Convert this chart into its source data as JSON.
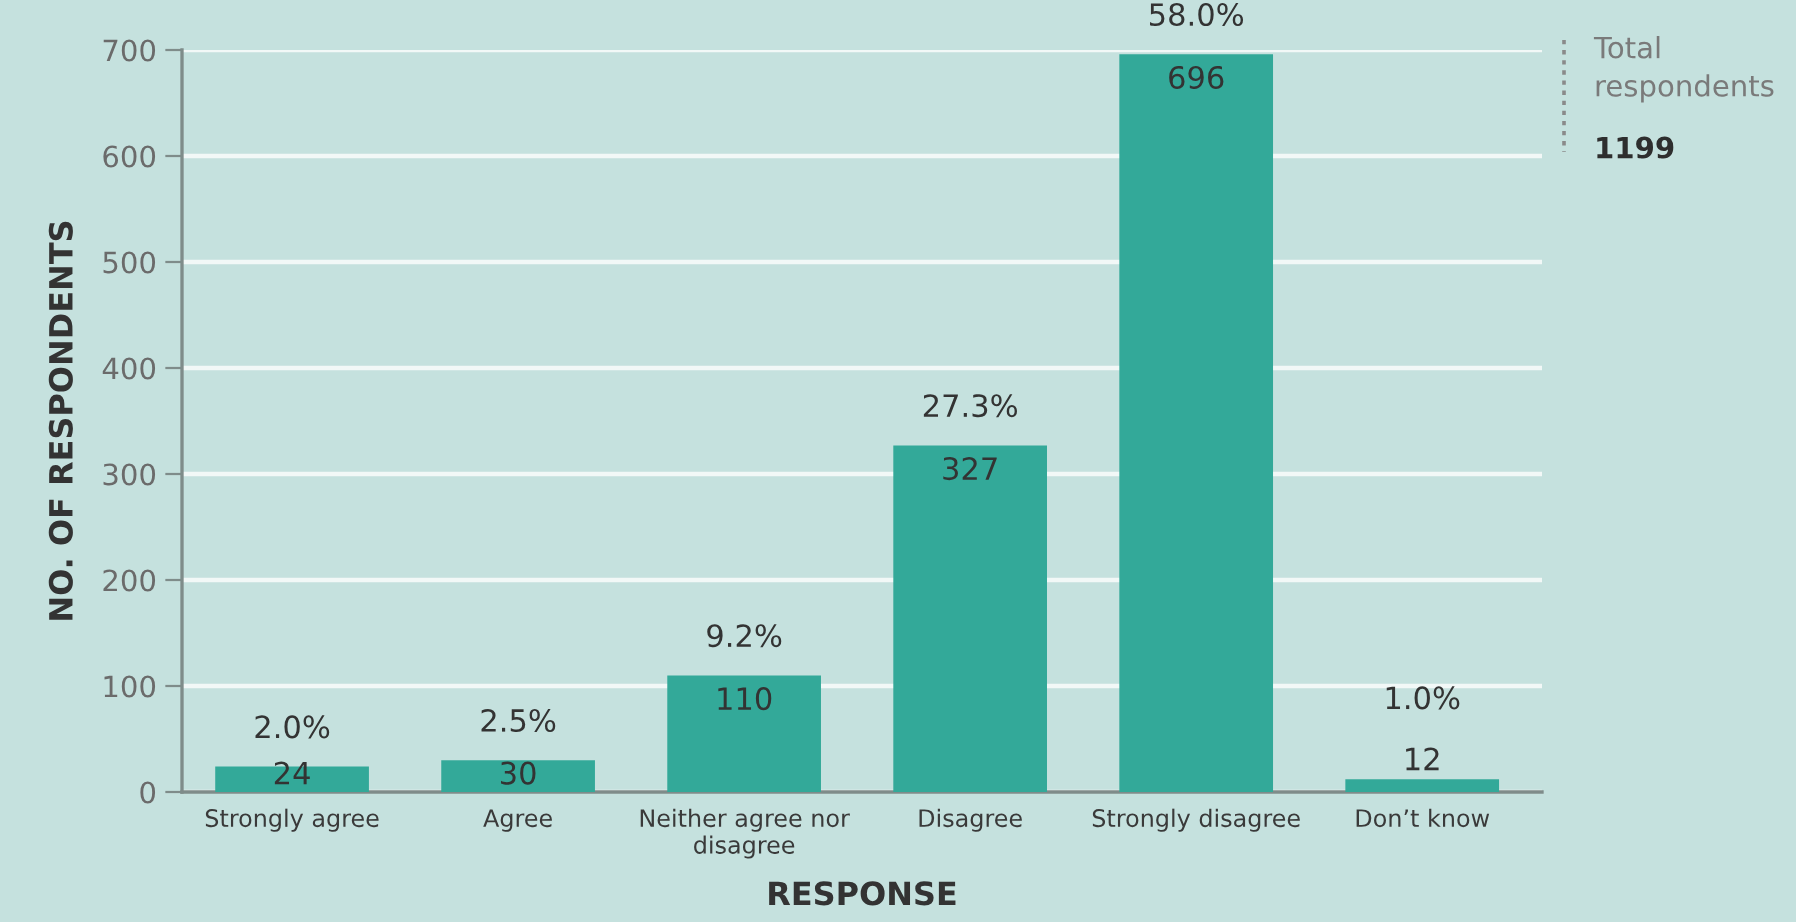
{
  "chart_data": {
    "type": "bar",
    "xlabel": "RESPONSE",
    "ylabel": "NO. OF RESPONDENTS",
    "categories": [
      "Strongly agree",
      "Agree",
      "Neither agree nor\ndisagree",
      "Disagree",
      "Strongly disagree",
      "Don’t know"
    ],
    "values": [
      24,
      30,
      110,
      327,
      696,
      12
    ],
    "color": "#33a999",
    "ylim": [
      0,
      700
    ],
    "yticks": [
      0,
      100,
      200,
      300,
      400,
      500,
      600,
      700
    ],
    "grid": "y",
    "data_labels": true,
    "annotations": [
      {
        "text": "2.0%",
        "x": "Strongly agree",
        "y": 24
      },
      {
        "text": "2.5%",
        "x": "Agree",
        "y": 30
      },
      {
        "text": "9.2%",
        "x": "Neither agree nor\ndisagree",
        "y": 110
      },
      {
        "text": "27.3%",
        "x": "Disagree",
        "y": 327
      },
      {
        "text": "58.0%",
        "x": "Strongly disagree",
        "y": 696
      },
      {
        "text": "1.0%",
        "x": "Don’t know",
        "y": 12
      },
      "Total\nrespondents",
      "1199"
    ]
  }
}
